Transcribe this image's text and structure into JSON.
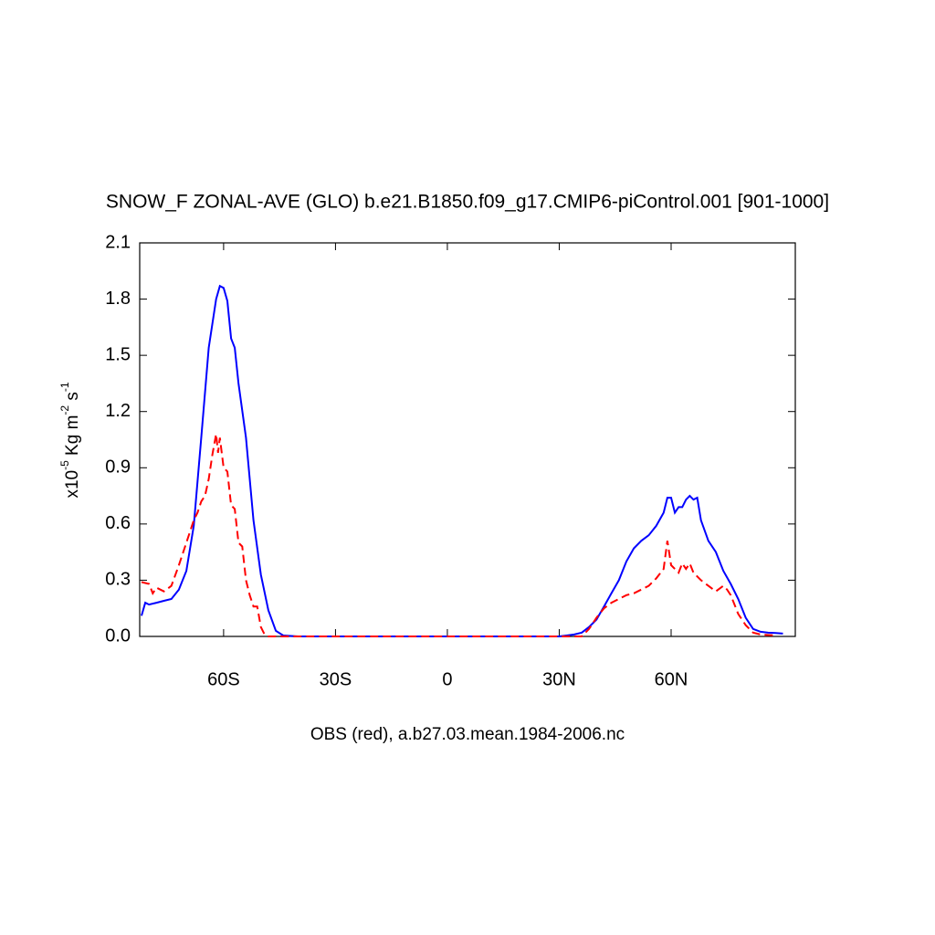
{
  "chart_data": {
    "type": "line",
    "title": "SNOW_F ZONAL-AVE (GLO) b.e21.B1850.f09_g17.CMIP6-piControl.001 [901-1000]",
    "x_label": "OBS (red), a.b27.03.mean.1984-2006.nc",
    "y_label": [
      "x10",
      "-5",
      " Kg m",
      "-2",
      " s",
      "-1"
    ],
    "xlim": [
      -82.5,
      93.3
    ],
    "ylim": [
      0,
      2.1
    ],
    "xticks": [
      {
        "value": -60,
        "label": "60S"
      },
      {
        "value": -30,
        "label": "30S"
      },
      0,
      {
        "value": 30,
        "label": "30N"
      },
      {
        "value": 60,
        "label": "60N"
      }
    ],
    "yticks": [
      {
        "value": 0,
        "label": "0.0"
      },
      0.3,
      0.6,
      0.9,
      1.2,
      1.5,
      1.8,
      2.1
    ],
    "series": [
      {
        "color": "#0000ff",
        "dashed": false,
        "x": [
          -82,
          -81,
          -80,
          -78,
          -76,
          -74,
          -72,
          -70,
          -68,
          -66,
          -64,
          -62,
          -61,
          -60,
          -59,
          -58,
          -57,
          -56,
          -54,
          -52,
          -50,
          -48,
          -46,
          -44,
          -40,
          0,
          30,
          32,
          34,
          36,
          38,
          40,
          42,
          44,
          46,
          48,
          50,
          52,
          54,
          56,
          58,
          59,
          60,
          61,
          62,
          63,
          64,
          65,
          66,
          67,
          68,
          70,
          72,
          74,
          76,
          78,
          80,
          82,
          84,
          86,
          88,
          90
        ],
        "values": [
          0.11,
          0.18,
          0.17,
          0.18,
          0.19,
          0.2,
          0.25,
          0.35,
          0.59,
          1.06,
          1.54,
          1.8,
          1.87,
          1.86,
          1.79,
          1.59,
          1.54,
          1.35,
          1.06,
          0.62,
          0.33,
          0.14,
          0.03,
          0.005,
          0,
          0,
          0,
          0.005,
          0.01,
          0.02,
          0.05,
          0.09,
          0.16,
          0.23,
          0.3,
          0.4,
          0.47,
          0.51,
          0.54,
          0.59,
          0.66,
          0.74,
          0.74,
          0.66,
          0.69,
          0.69,
          0.73,
          0.75,
          0.73,
          0.74,
          0.62,
          0.51,
          0.45,
          0.35,
          0.28,
          0.2,
          0.1,
          0.04,
          0.025,
          0.02,
          0.018,
          0.015
        ]
      },
      {
        "color": "#ff0000",
        "dashed": true,
        "x": [
          -82,
          -80,
          -79,
          -78,
          -76,
          -74,
          -72,
          -70,
          -68,
          -67,
          -66,
          -65,
          -64,
          -63,
          -62,
          -61.5,
          -61,
          -60,
          -59,
          -58,
          -57,
          -56,
          -55,
          -54,
          -53,
          -52,
          -51,
          -50,
          -49,
          -48,
          0,
          36,
          38,
          40,
          42,
          44,
          46,
          48,
          50,
          52,
          54,
          56,
          58,
          59,
          60,
          61,
          62,
          63,
          64,
          65,
          66,
          68,
          70,
          72,
          74,
          75,
          76,
          78,
          80,
          82,
          84,
          88
        ],
        "values": [
          0.29,
          0.28,
          0.23,
          0.26,
          0.24,
          0.27,
          0.38,
          0.5,
          0.62,
          0.66,
          0.72,
          0.75,
          0.84,
          0.97,
          1.08,
          0.98,
          1.06,
          0.9,
          0.88,
          0.7,
          0.68,
          0.5,
          0.48,
          0.3,
          0.22,
          0.16,
          0.16,
          0.05,
          0.01,
          0,
          0,
          0,
          0.04,
          0.1,
          0.15,
          0.18,
          0.2,
          0.22,
          0.23,
          0.25,
          0.27,
          0.31,
          0.36,
          0.51,
          0.38,
          0.36,
          0.34,
          0.39,
          0.36,
          0.39,
          0.34,
          0.3,
          0.27,
          0.24,
          0.27,
          0.25,
          0.22,
          0.12,
          0.06,
          0.02,
          0.01,
          0.005
        ]
      }
    ]
  }
}
